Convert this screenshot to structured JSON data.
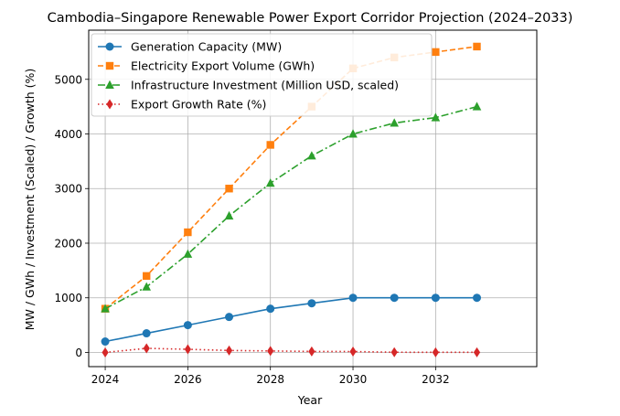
{
  "chart_data": {
    "type": "line",
    "title": "Cambodia–Singapore Renewable Power Export Corridor Projection (2024–2033)",
    "xlabel": "Year",
    "ylabel": "MW / GWh / Investment (Scaled) / Growth (%)",
    "x": [
      2024,
      2025,
      2026,
      2027,
      2028,
      2029,
      2030,
      2031,
      2032,
      2033
    ],
    "xlim": [
      2023.6,
      2034.45
    ],
    "ylim": [
      -260,
      5900
    ],
    "xticks": [
      2024,
      2026,
      2028,
      2030,
      2032
    ],
    "yticks": [
      0,
      1000,
      2000,
      3000,
      4000,
      5000
    ],
    "grid": true,
    "legend_position": "top-left",
    "series": [
      {
        "name": "Generation Capacity (MW)",
        "color": "#1f77b4",
        "line_style": "solid",
        "marker": "circle",
        "values": [
          200,
          350,
          500,
          650,
          800,
          900,
          1000,
          1000,
          1000,
          1000
        ]
      },
      {
        "name": "Electricity Export Volume (GWh)",
        "color": "#ff7f0e",
        "line_style": "dashed",
        "marker": "square",
        "values": [
          800,
          1400,
          2200,
          3000,
          3800,
          4500,
          5200,
          5400,
          5500,
          5600
        ]
      },
      {
        "name": "Infrastructure Investment (Million USD, scaled)",
        "color": "#2ca02c",
        "line_style": "dashdot",
        "marker": "triangle",
        "values": [
          800,
          1200,
          1800,
          2500,
          3100,
          3600,
          4000,
          4200,
          4300,
          4500
        ]
      },
      {
        "name": "Export Growth Rate (%)",
        "color": "#d62728",
        "line_style": "dotted",
        "marker": "diamond",
        "values": [
          0,
          75,
          57,
          36,
          27,
          18,
          16,
          4,
          2,
          2
        ]
      }
    ]
  }
}
